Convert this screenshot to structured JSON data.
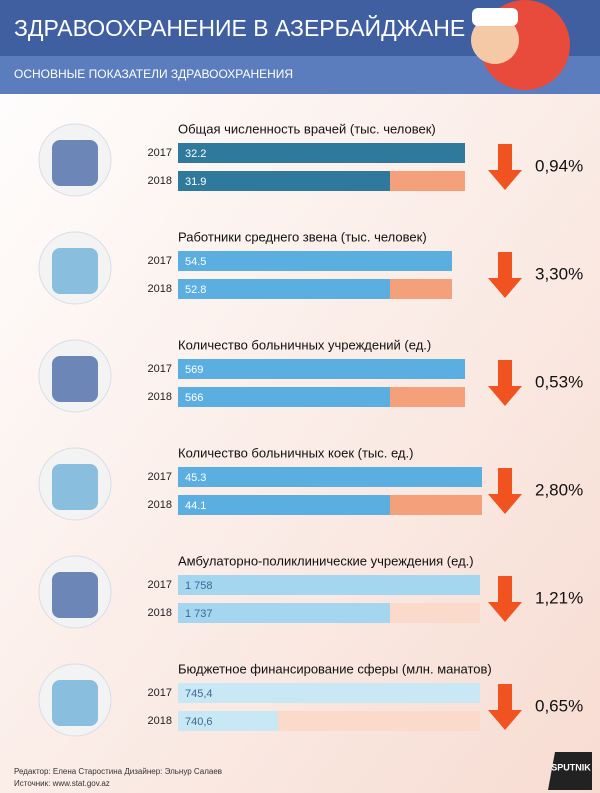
{
  "header": {
    "title": "ЗДРАВООХРАНЕНИЕ В АЗЕРБАЙДЖАНЕ",
    "subtitle": "ОСНОВНЫЕ ПОКАЗАТЕЛИ ЗДРАВООХРАНЕНИЯ"
  },
  "sections": [
    {
      "title": "Общая численность врачей (тыс. человек)",
      "rows": [
        {
          "year": "2017",
          "value": "32.2"
        },
        {
          "year": "2018",
          "value": "31.9"
        }
      ],
      "change": "0,94%"
    },
    {
      "title": "Работники среднего звена (тыс. человек)",
      "rows": [
        {
          "year": "2017",
          "value": "54.5"
        },
        {
          "year": "2018",
          "value": "52.8"
        }
      ],
      "change": "3,30%"
    },
    {
      "title": "Количество больничных учреждений (ед.)",
      "rows": [
        {
          "year": "2017",
          "value": "569"
        },
        {
          "year": "2018",
          "value": "566"
        }
      ],
      "change": "0,53%"
    },
    {
      "title": "Количество больничных коек (тыс. ед.)",
      "rows": [
        {
          "year": "2017",
          "value": "45.3"
        },
        {
          "year": "2018",
          "value": "44.1"
        }
      ],
      "change": "2,80%"
    },
    {
      "title": "Амбулаторно-поликлинические учреждения (ед.)",
      "rows": [
        {
          "year": "2017",
          "value": "1 758"
        },
        {
          "year": "2018",
          "value": "1 737"
        }
      ],
      "change": "1,21%"
    },
    {
      "title": "Бюджетное финансирование сферы (млн. манатов)",
      "rows": [
        {
          "year": "2017",
          "value": "745,4"
        },
        {
          "year": "2018",
          "value": "740,6"
        }
      ],
      "change": "0,65%"
    }
  ],
  "footer": {
    "credits": "Редактор: Елена Старостина  Дизайнер: Эльнур Салаев",
    "source": "Источник: www.stat.gov.az",
    "logo": "SPUTNIK"
  }
}
